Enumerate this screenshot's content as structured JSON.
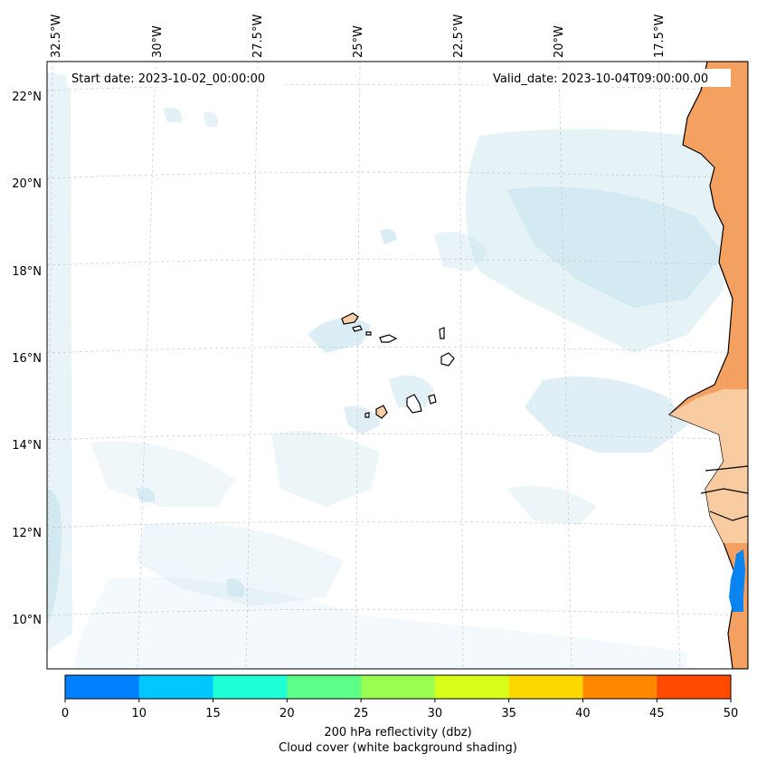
{
  "map": {
    "start_date": "Start date: 2023-10-02_00:00:00",
    "valid_date": "Valid_date: 2023-10-04T09:00:00.00",
    "lon_labels": [
      "32.5°W",
      "30°W",
      "27.5°W",
      "25°W",
      "22.5°W",
      "20°W",
      "17.5°W"
    ],
    "lat_labels": [
      "22°N",
      "20°N",
      "18°N",
      "16°N",
      "14°N",
      "12°N",
      "10°N"
    ]
  },
  "colorbar": {
    "ticks": [
      "0",
      "10",
      "15",
      "20",
      "25",
      "30",
      "35",
      "40",
      "45",
      "50"
    ],
    "colors": [
      "#0080ff",
      "#00c8ff",
      "#1effd8",
      "#5cff88",
      "#99ff50",
      "#d8ff1a",
      "#ffd800",
      "#ff8800",
      "#ff4a00"
    ],
    "label_line1": "200 hPa reflectivity (dbz)",
    "label_line2": "Cloud cover (white background shading)"
  },
  "colors": {
    "cloud": "#bfe0ec",
    "land_warm": "#f4a060",
    "island_fill": "#f8cfa8",
    "reflectivity_blob": "#0a84f0"
  }
}
